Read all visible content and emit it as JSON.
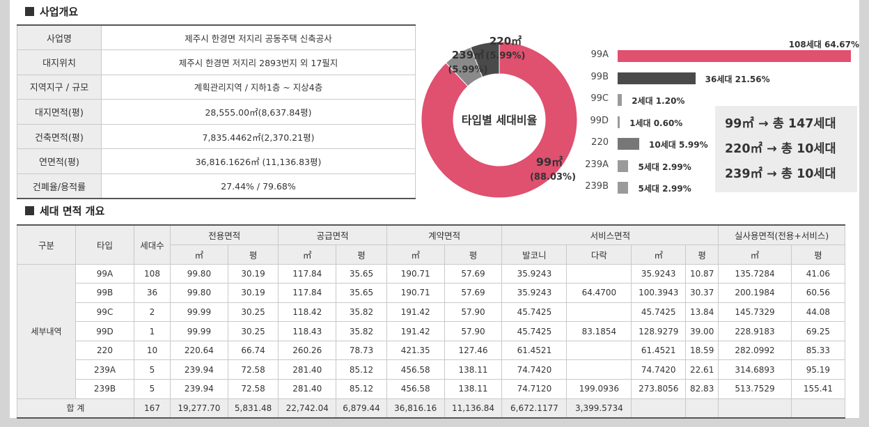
{
  "overview": {
    "heading": "사업개요",
    "rows": [
      {
        "label": "사업명",
        "value": "제주시 한경면 저지리 공동주택 신축공사"
      },
      {
        "label": "대지위치",
        "value": "제주시 한경면 저지리 2893번지 외 17필지"
      },
      {
        "label": "지역지구 / 규모",
        "value": "계획관리지역 / 지하1층 ~ 지상4층"
      },
      {
        "label": "대지면적(평)",
        "value": "28,555.00㎡(8,637.84평)"
      },
      {
        "label": "건축면적(평)",
        "value": "7,835.4462㎡(2,370.21평)"
      },
      {
        "label": "연면적(평)",
        "value": "36,816.1626㎡ (11,136.83평)"
      },
      {
        "label": "건폐율/용적률",
        "value": "27.44% / 79.68%"
      }
    ]
  },
  "donut": {
    "center_label": "타입별 세대비율",
    "slices": [
      {
        "label": "99㎡",
        "pct_text": "(88.03%)",
        "value": 88.03,
        "color": "#e0506f"
      },
      {
        "label": "239㎡",
        "pct_text": "(5.99%)",
        "value": 5.99,
        "color": "#8a8a8a"
      },
      {
        "label": "220㎡",
        "pct_text": "(5.99%)",
        "value": 5.99,
        "color": "#4a4a4a"
      }
    ]
  },
  "bars": {
    "items": [
      {
        "type": "99A",
        "count": 108,
        "text": "108세대 64.67%",
        "pct": 64.67,
        "color": "#e0506f"
      },
      {
        "type": "99B",
        "count": 36,
        "text": "36세대 21.56%",
        "pct": 21.56,
        "color": "#4a4a4a"
      },
      {
        "type": "99C",
        "count": 2,
        "text": "2세대 1.20%",
        "pct": 1.2,
        "color": "#9a9a9a"
      },
      {
        "type": "99D",
        "count": 1,
        "text": "1세대 0.60%",
        "pct": 0.6,
        "color": "#9a9a9a"
      },
      {
        "type": "220",
        "count": 10,
        "text": "10세대 5.99%",
        "pct": 5.99,
        "color": "#777777"
      },
      {
        "type": "239A",
        "count": 5,
        "text": "5세대 2.99%",
        "pct": 2.99,
        "color": "#9a9a9a"
      },
      {
        "type": "239B",
        "count": 5,
        "text": "5세대 2.99%",
        "pct": 2.99,
        "color": "#9a9a9a"
      }
    ]
  },
  "summary": [
    "99㎡ → 총 147세대",
    "220㎡ → 총 10세대",
    "239㎡ → 총 10세대"
  ],
  "units": {
    "heading": "세대 면적 개요",
    "head": {
      "gubun": "구분",
      "type": "타입",
      "count": "세대수",
      "exclusive": "전용면적",
      "supply": "공급면적",
      "contract": "계약면적",
      "service": "서비스면적",
      "actual": "실사용면적(전용+서비스)",
      "sqm": "㎡",
      "pyeong": "평",
      "balcony": "발코니",
      "attic": "다락"
    },
    "group_label": "세부내역",
    "rows": [
      [
        "99A",
        "108",
        "99.80",
        "30.19",
        "117.84",
        "35.65",
        "190.71",
        "57.69",
        "35.9243",
        "",
        "35.9243",
        "10.87",
        "135.7284",
        "41.06"
      ],
      [
        "99B",
        "36",
        "99.80",
        "30.19",
        "117.84",
        "35.65",
        "190.71",
        "57.69",
        "35.9243",
        "64.4700",
        "100.3943",
        "30.37",
        "200.1984",
        "60.56"
      ],
      [
        "99C",
        "2",
        "99.99",
        "30.25",
        "118.42",
        "35.82",
        "191.42",
        "57.90",
        "45.7425",
        "",
        "45.7425",
        "13.84",
        "145.7329",
        "44.08"
      ],
      [
        "99D",
        "1",
        "99.99",
        "30.25",
        "118.43",
        "35.82",
        "191.42",
        "57.90",
        "45.7425",
        "83.1854",
        "128.9279",
        "39.00",
        "228.9183",
        "69.25"
      ],
      [
        "220",
        "10",
        "220.64",
        "66.74",
        "260.26",
        "78.73",
        "421.35",
        "127.46",
        "61.4521",
        "",
        "61.4521",
        "18.59",
        "282.0992",
        "85.33"
      ],
      [
        "239A",
        "5",
        "239.94",
        "72.58",
        "281.40",
        "85.12",
        "456.58",
        "138.11",
        "74.7420",
        "",
        "74.7420",
        "22.61",
        "314.6893",
        "95.19"
      ],
      [
        "239B",
        "5",
        "239.94",
        "72.58",
        "281.40",
        "85.12",
        "456.58",
        "138.11",
        "74.7120",
        "199.0936",
        "273.8056",
        "82.83",
        "513.7529",
        "155.41"
      ]
    ],
    "total": {
      "label": "합 계",
      "values": [
        "167",
        "19,277.70",
        "5,831.48",
        "22,742.04",
        "6,879.44",
        "36,816.16",
        "11,136.84",
        "6,672.1177",
        "3,399.5734",
        "",
        "",
        "",
        ""
      ]
    }
  }
}
